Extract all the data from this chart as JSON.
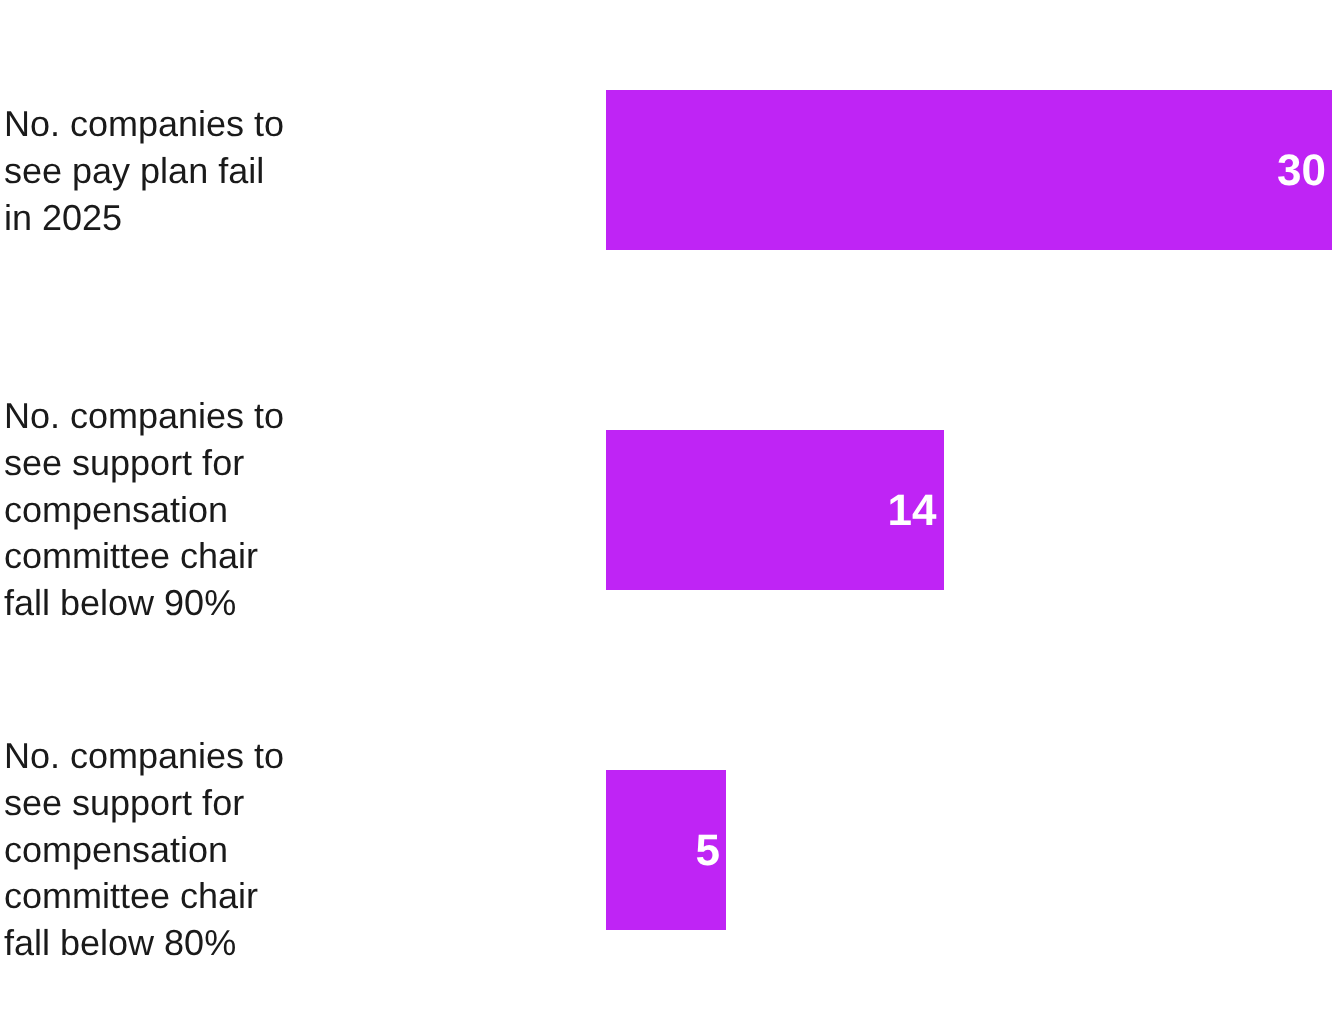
{
  "chart_data": {
    "type": "bar",
    "orientation": "horizontal",
    "categories": [
      "No. companies to see pay plan fail in 2025",
      "No. companies to see support for compensation committee chair fall below 90%",
      "No. companies to see support for compensation committee chair fall below 80%"
    ],
    "values": [
      30,
      14,
      5
    ],
    "color": "#bf24f5",
    "xlim": [
      0,
      30
    ],
    "data_labels": true,
    "tick_labels": false
  }
}
